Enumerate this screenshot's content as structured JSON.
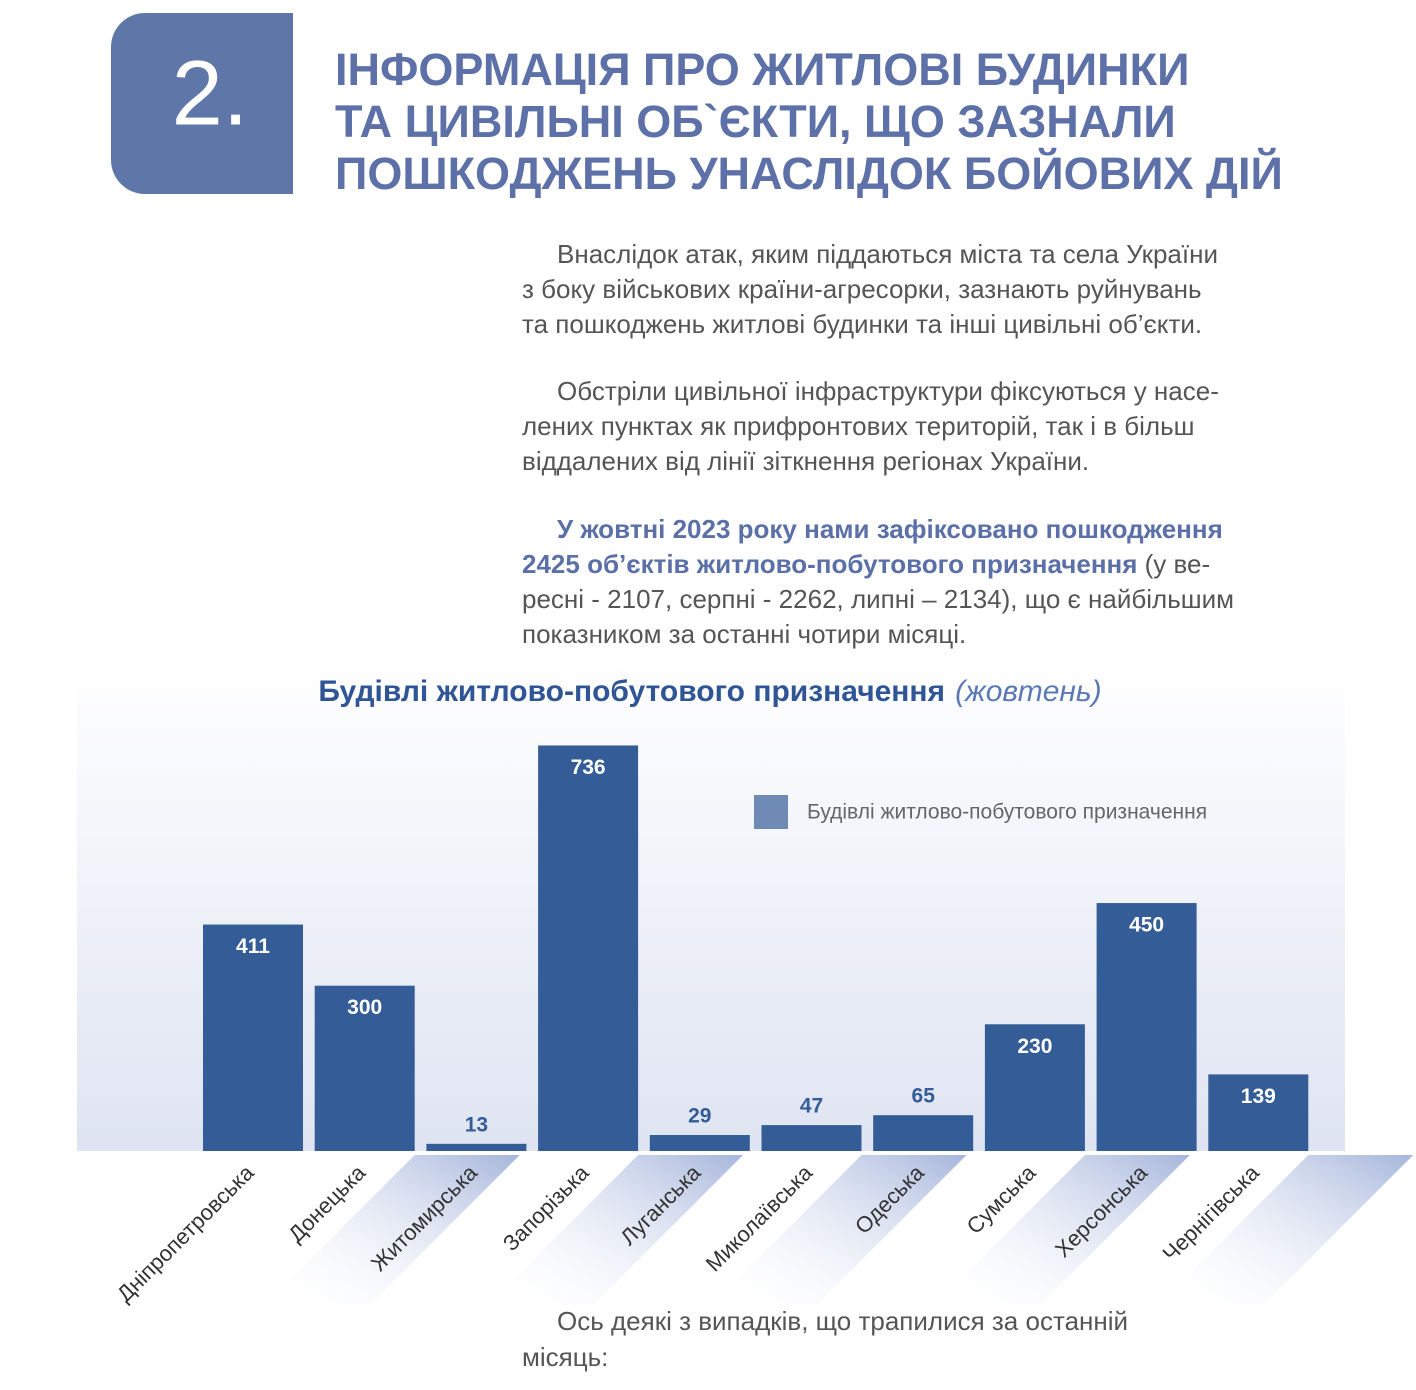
{
  "header": {
    "number": "2.",
    "title_lines": [
      "ІНФОРМАЦІЯ ПРО ЖИТЛОВІ БУДИНКИ",
      "ТА ЦИВІЛЬНІ ОБ`ЄКТИ, ЩО ЗАЗНАЛИ",
      "ПОШКОДЖЕНЬ УНАСЛІДОК БОЙОВИХ ДІЙ"
    ]
  },
  "paragraphs": [
    {
      "lines": [
        "Внаслідок атак, яким піддаються міста та села України",
        "з боку військових країни-агресорки, зазнають руйнувань",
        "та пошкоджень житлові будинки та інші цивільні об’єкти."
      ]
    },
    {
      "lines": [
        "Обстріли цивільної інфраструктури фіксуються у насе-",
        "лених пунктах як прифронтових територій, так і в більш",
        "віддалених від лінії зіткнення регіонах України."
      ]
    },
    {
      "highlight": [
        "У жовтні 2023 року нами зафіксовано пошкодження",
        "2425 об’єктів житлово-побутового призначення"
      ],
      "rest": [
        " (у ве-",
        "ресні - 2107, серпні - 2262, липні – 2134), що є найбільшим",
        "показником за останні чотири місяці."
      ]
    }
  ],
  "footer_lines": [
    "Ось деякі з випадків, що трапилися за останній",
    "місяць:"
  ],
  "chart_data": {
    "type": "bar",
    "title": "Будівлі житлово-побутового призначення",
    "subtitle": "(жовтень)",
    "categories": [
      "Дніпропетровська",
      "Донецька",
      "Житомирська",
      "Запорізька",
      "Луганська",
      "Миколаївська",
      "Одеська",
      "Сумська",
      "Херсонська",
      "Чернігівська"
    ],
    "series": [
      {
        "name": "Будівлі житлово-побутового призначення",
        "color": "#345c97",
        "values": [
          411,
          300,
          13,
          736,
          29,
          47,
          65,
          230,
          450,
          139
        ]
      }
    ],
    "legend": "top-right"
  }
}
